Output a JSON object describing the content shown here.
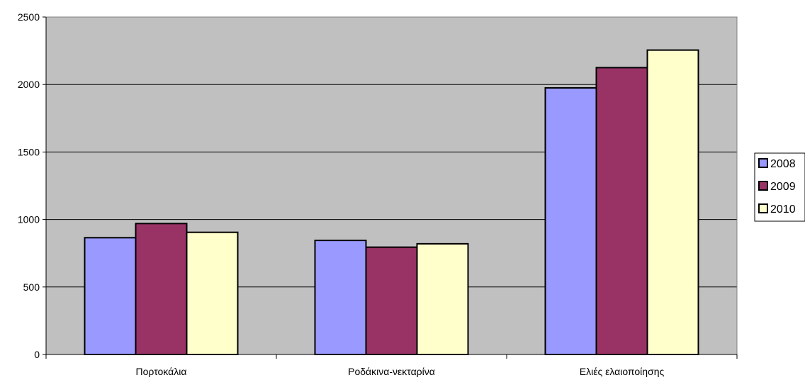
{
  "chart_data": {
    "type": "bar",
    "title": "",
    "xlabel": "",
    "ylabel": "",
    "categories": [
      "Πορτοκάλια",
      "Ροδάκινα-νεκταρίνα",
      "Ελιές ελαιοποίησης"
    ],
    "series": [
      {
        "name": "2008",
        "values": [
          865,
          845,
          1975
        ],
        "color": "#9999ff"
      },
      {
        "name": "2009",
        "values": [
          970,
          795,
          2125
        ],
        "color": "#993366"
      },
      {
        "name": "2010",
        "values": [
          905,
          820,
          2255
        ],
        "color": "#ffffcc"
      }
    ],
    "ylim": [
      0,
      2500
    ],
    "yticks": [
      0,
      500,
      1000,
      1500,
      2000,
      2500
    ],
    "grid": true,
    "legend": "right",
    "plot_background": "#c0c0c0"
  }
}
